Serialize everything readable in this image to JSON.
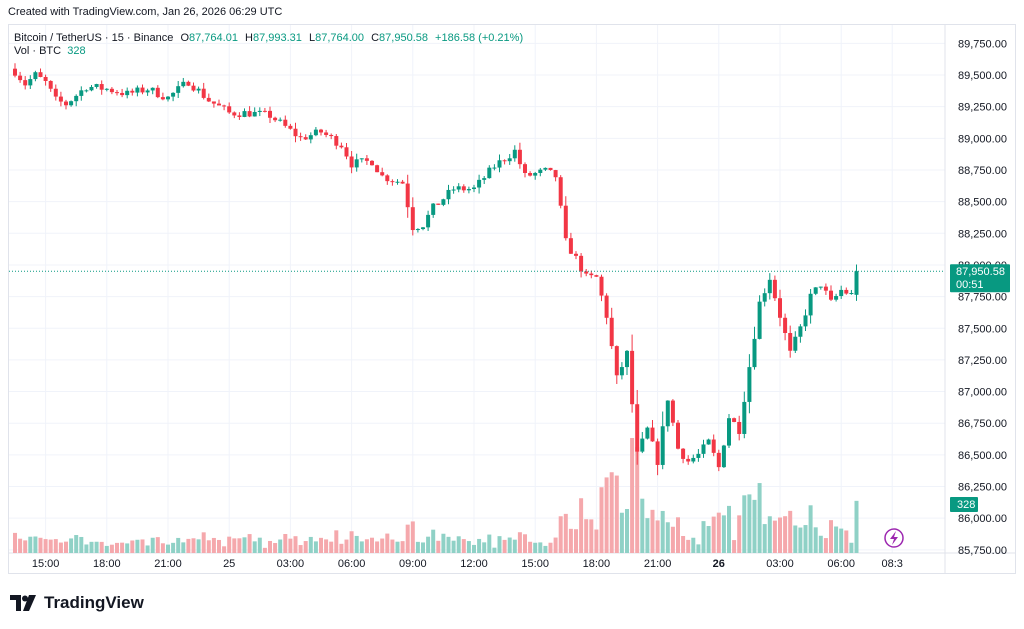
{
  "header": {
    "caption": "Created with TradingView.com, Jan 26, 2026 06:29 UTC"
  },
  "legend": {
    "symbol": "Bitcoin / TetherUS · 15 · Binance",
    "open_label": "O",
    "open": "87,764.01",
    "high_label": "H",
    "high": "87,993.31",
    "low_label": "L",
    "low": "87,764.00",
    "close_label": "C",
    "close": "87,950.58",
    "change": "+186.58 (+0.21%)",
    "vol_label": "Vol · BTC",
    "vol_value": "328"
  },
  "price_badge": {
    "price": "87,950.58",
    "countdown": "00:51"
  },
  "volume_badge": "328",
  "brand": {
    "name": "TradingView"
  },
  "colors": {
    "up": "#089981",
    "down": "#f23645",
    "up_vol": "#8fd1c6",
    "down_vol": "#f5a8ac",
    "grid": "#f0f3fa"
  },
  "chart_data": {
    "type": "candlestick",
    "title": "Bitcoin / TetherUS · 15 · Binance",
    "y_ticks": [
      89750,
      89500,
      89250,
      89000,
      88750,
      88500,
      88250,
      88000,
      87750,
      87500,
      87250,
      87000,
      86750,
      86500,
      86250,
      86000,
      85750
    ],
    "y_tick_labels": [
      "89,750.00",
      "89,500.00",
      "89,250.00",
      "89,000.00",
      "88,750.00",
      "88,500.00",
      "88,250.00",
      "88,000.00",
      "87,750.00",
      "87,500.00",
      "87,250.00",
      "87,000.00",
      "86,750.00",
      "86,500.00",
      "86,250.00",
      "86,000.00",
      "85,750.00"
    ],
    "ylim": [
      85725,
      89895
    ],
    "x_ticks": [
      {
        "label": "15:00",
        "bar": 6,
        "bold": false
      },
      {
        "label": "18:00",
        "bar": 18,
        "bold": false
      },
      {
        "label": "21:00",
        "bar": 30,
        "bold": false
      },
      {
        "label": "25",
        "bar": 42,
        "bold": false
      },
      {
        "label": "03:00",
        "bar": 54,
        "bold": false
      },
      {
        "label": "06:00",
        "bar": 66,
        "bold": false
      },
      {
        "label": "09:00",
        "bar": 78,
        "bold": false
      },
      {
        "label": "12:00",
        "bar": 90,
        "bold": false
      },
      {
        "label": "15:00",
        "bar": 102,
        "bold": false
      },
      {
        "label": "18:00",
        "bar": 114,
        "bold": false
      },
      {
        "label": "21:00",
        "bar": 126,
        "bold": false
      },
      {
        "label": "26",
        "bar": 138,
        "bold": true
      },
      {
        "label": "03:00",
        "bar": 150,
        "bold": false
      },
      {
        "label": "06:00",
        "bar": 162,
        "bold": false
      },
      {
        "label": "08:3",
        "bar": 172,
        "bold": false
      }
    ],
    "last_price": 87950.58,
    "anchors": [
      [
        0,
        89530
      ],
      [
        2,
        89430
      ],
      [
        4,
        89500
      ],
      [
        6,
        89440
      ],
      [
        8,
        89300
      ],
      [
        10,
        89270
      ],
      [
        14,
        89410
      ],
      [
        18,
        89390
      ],
      [
        22,
        89350
      ],
      [
        26,
        89390
      ],
      [
        30,
        89320
      ],
      [
        34,
        89450
      ],
      [
        38,
        89300
      ],
      [
        42,
        89200
      ],
      [
        46,
        89200
      ],
      [
        50,
        89180
      ],
      [
        56,
        89000
      ],
      [
        60,
        89050
      ],
      [
        64,
        88950
      ],
      [
        66,
        88800
      ],
      [
        70,
        88820
      ],
      [
        72,
        88700
      ],
      [
        76,
        88650
      ],
      [
        78,
        88300
      ],
      [
        80,
        88320
      ],
      [
        82,
        88450
      ],
      [
        86,
        88600
      ],
      [
        90,
        88600
      ],
      [
        94,
        88780
      ],
      [
        98,
        88900
      ],
      [
        100,
        88700
      ],
      [
        104,
        88740
      ],
      [
        106,
        88700
      ],
      [
        108,
        88180
      ],
      [
        110,
        88050
      ],
      [
        112,
        87900
      ],
      [
        114,
        87900
      ],
      [
        116,
        87600
      ],
      [
        118,
        87100
      ],
      [
        120,
        87300
      ],
      [
        122,
        86500
      ],
      [
        124,
        86700
      ],
      [
        126,
        86450
      ],
      [
        128,
        86950
      ],
      [
        130,
        86550
      ],
      [
        132,
        86450
      ],
      [
        134,
        86500
      ],
      [
        136,
        86600
      ],
      [
        138,
        86400
      ],
      [
        140,
        86800
      ],
      [
        142,
        86700
      ],
      [
        144,
        87200
      ],
      [
        146,
        87700
      ],
      [
        148,
        87900
      ],
      [
        150,
        87600
      ],
      [
        152,
        87300
      ],
      [
        154,
        87500
      ],
      [
        156,
        87750
      ],
      [
        158,
        87850
      ],
      [
        160,
        87700
      ],
      [
        162,
        87800
      ],
      [
        164,
        87764
      ],
      [
        165,
        87950.58
      ]
    ],
    "volume_scale_max": 6000
  }
}
